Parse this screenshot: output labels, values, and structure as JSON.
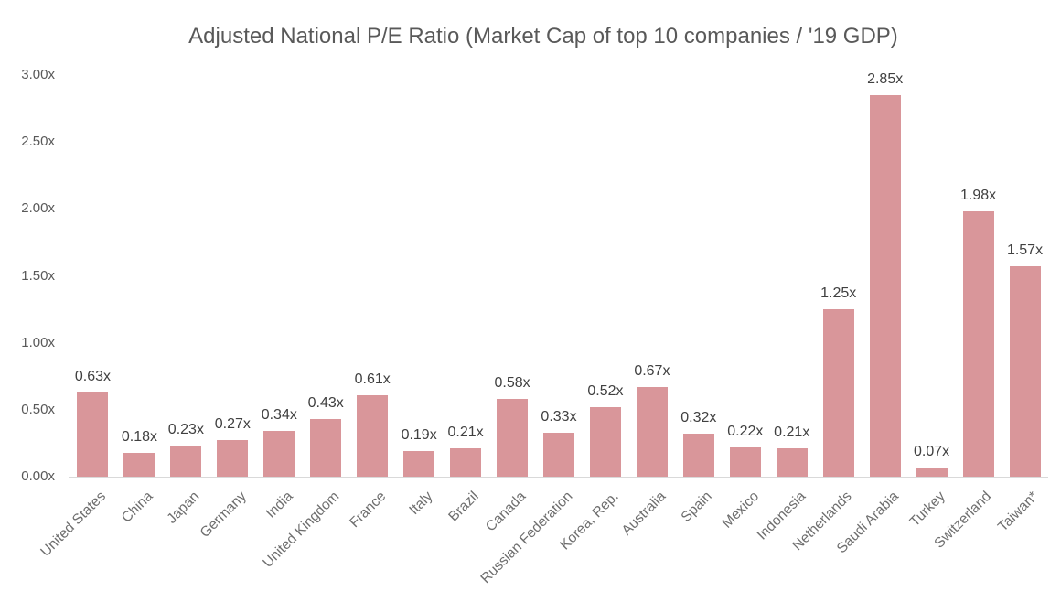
{
  "chart_data": {
    "type": "bar",
    "title": "Adjusted National P/E Ratio (Market Cap of top 10 companies / '19 GDP)",
    "categories": [
      "United States",
      "China",
      "Japan",
      "Germany",
      "India",
      "United Kingdom",
      "France",
      "Italy",
      "Brazil",
      "Canada",
      "Russian Federation",
      "Korea, Rep.",
      "Australia",
      "Spain",
      "Mexico",
      "Indonesia",
      "Netherlands",
      "Saudi Arabia",
      "Turkey",
      "Switzerland",
      "Taiwan*"
    ],
    "values": [
      0.63,
      0.18,
      0.23,
      0.27,
      0.34,
      0.43,
      0.61,
      0.19,
      0.21,
      0.58,
      0.33,
      0.52,
      0.67,
      0.32,
      0.22,
      0.21,
      1.25,
      2.85,
      0.07,
      1.98,
      1.57
    ],
    "value_labels": [
      "0.63x",
      "0.18x",
      "0.23x",
      "0.27x",
      "0.34x",
      "0.43x",
      "0.61x",
      "0.19x",
      "0.21x",
      "0.58x",
      "0.33x",
      "0.52x",
      "0.67x",
      "0.32x",
      "0.22x",
      "0.21x",
      "1.25x",
      "2.85x",
      "0.07x",
      "1.98x",
      "1.57x"
    ],
    "y_ticks": [
      "0.00x",
      "0.50x",
      "1.00x",
      "1.50x",
      "2.00x",
      "2.50x",
      "3.00x"
    ],
    "ylim": [
      0,
      3
    ],
    "xlabel": "",
    "ylabel": "",
    "grid": false,
    "legend": null,
    "bar_color": "#d9969a",
    "baseline_color": "#d9d9d9",
    "title_color": "#595959",
    "value_label_color": "#404040",
    "axis_label_color": "#6e6e6e"
  }
}
